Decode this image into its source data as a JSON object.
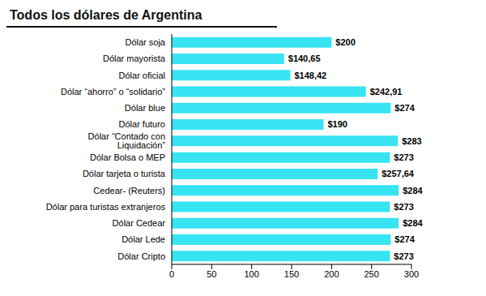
{
  "chart_data": {
    "type": "bar",
    "title": "Todos los dólares de Argentina",
    "orientation": "horizontal",
    "categories": [
      "Dólar soja",
      "Dólar mayorista",
      "Dólar oficial",
      "Dólar “ahorro” o “solidario”",
      "Dólar blue",
      "Dólar futuro",
      "Dólar “Contado con Liquidación”",
      "Dólar Bolsa o MEP",
      "Dólar tarjeta o turista",
      "Cedear- (Reuters)",
      "Dólar para turistas extranjeros",
      "Dólar Cedear",
      "Dólar Lede",
      "Dólar Cripto"
    ],
    "values": [
      200,
      140.65,
      148.42,
      242.91,
      274,
      190,
      283,
      273,
      257.64,
      284,
      273,
      284,
      274,
      273
    ],
    "value_labels": [
      "$200",
      "$140,65",
      "$148,42",
      "$242,91",
      "$274",
      "$190",
      "$283",
      "$273",
      "$257,64",
      "$284",
      "$273",
      "$284",
      "$274",
      "$273"
    ],
    "color": "#38e4f2",
    "xlim": [
      0,
      300
    ],
    "xticks": [
      0,
      50,
      100,
      150,
      200,
      250,
      300
    ],
    "grid": false,
    "data_labels": true
  }
}
